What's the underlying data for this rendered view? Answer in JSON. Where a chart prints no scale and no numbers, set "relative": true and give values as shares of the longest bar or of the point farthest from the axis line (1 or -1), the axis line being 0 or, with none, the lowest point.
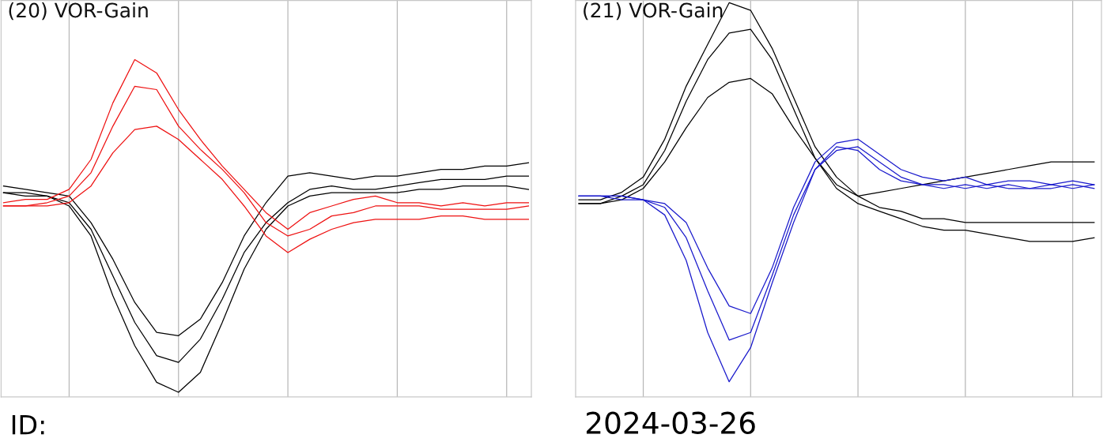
{
  "chart_data": [
    {
      "type": "line",
      "title": "(20) VOR-Gain",
      "relative": true,
      "grid": "x",
      "legend": false,
      "marker": "none",
      "line_style": "solid",
      "tick_labels": false,
      "categories": [
        null,
        null,
        null,
        null,
        null,
        null,
        null,
        null,
        null,
        null,
        null,
        null,
        null,
        null,
        null,
        null,
        null,
        null,
        null,
        null,
        null,
        null,
        null,
        null,
        null
      ],
      "annotations": [
        "ID:"
      ],
      "series": [
        {
          "color": "#000000",
          "values": [
            0.6,
            0.6,
            0.59,
            0.57,
            0.49,
            0.35,
            0.21,
            0.11,
            0.09,
            0.16,
            0.28,
            0.42,
            0.51,
            0.57,
            0.61,
            0.62,
            0.61,
            0.61,
            0.62,
            0.63,
            0.64,
            0.64,
            0.64,
            0.65,
            0.65
          ]
        },
        {
          "color": "#000000",
          "values": [
            0.6,
            0.59,
            0.59,
            0.56,
            0.47,
            0.29,
            0.14,
            0.03,
            0.0,
            0.06,
            0.21,
            0.37,
            0.49,
            0.56,
            0.59,
            0.6,
            0.6,
            0.6,
            0.6,
            0.61,
            0.61,
            0.62,
            0.62,
            0.62,
            0.61
          ]
        },
        {
          "color": "#000000",
          "values": [
            0.62,
            0.61,
            0.6,
            0.59,
            0.51,
            0.4,
            0.27,
            0.18,
            0.17,
            0.22,
            0.33,
            0.47,
            0.57,
            0.65,
            0.66,
            0.65,
            0.64,
            0.65,
            0.65,
            0.66,
            0.67,
            0.67,
            0.68,
            0.68,
            0.69
          ]
        },
        {
          "color": "#ee1111",
          "values": [
            0.57,
            0.58,
            0.58,
            0.61,
            0.7,
            0.87,
            1.0,
            0.96,
            0.85,
            0.76,
            0.68,
            0.61,
            0.54,
            0.49,
            0.54,
            0.56,
            0.58,
            0.59,
            0.57,
            0.57,
            0.56,
            0.57,
            0.56,
            0.57,
            0.57
          ]
        },
        {
          "color": "#ee1111",
          "values": [
            0.56,
            0.56,
            0.57,
            0.59,
            0.66,
            0.8,
            0.92,
            0.91,
            0.8,
            0.73,
            0.67,
            0.6,
            0.51,
            0.47,
            0.49,
            0.53,
            0.54,
            0.56,
            0.56,
            0.56,
            0.55,
            0.55,
            0.55,
            0.55,
            0.56
          ]
        },
        {
          "color": "#ee1111",
          "values": [
            0.56,
            0.56,
            0.56,
            0.57,
            0.62,
            0.72,
            0.79,
            0.8,
            0.76,
            0.7,
            0.64,
            0.56,
            0.47,
            0.42,
            0.46,
            0.49,
            0.51,
            0.52,
            0.52,
            0.52,
            0.53,
            0.53,
            0.52,
            0.52,
            0.52
          ]
        }
      ]
    },
    {
      "type": "line",
      "title": "(21) VOR-Gain",
      "relative": true,
      "grid": "x",
      "legend": false,
      "marker": "none",
      "line_style": "solid",
      "tick_labels": false,
      "categories": [
        null,
        null,
        null,
        null,
        null,
        null,
        null,
        null,
        null,
        null,
        null,
        null,
        null,
        null,
        null,
        null,
        null,
        null,
        null,
        null,
        null,
        null,
        null,
        null,
        null
      ],
      "annotations": [
        "2024-03-26"
      ],
      "series": [
        {
          "color": "#000000",
          "values": [
            0.48,
            0.48,
            0.5,
            0.54,
            0.64,
            0.78,
            0.89,
            1.0,
            0.98,
            0.88,
            0.75,
            0.62,
            0.54,
            0.49,
            0.46,
            0.45,
            0.43,
            0.43,
            0.42,
            0.42,
            0.42,
            0.42,
            0.42,
            0.42,
            0.42
          ]
        },
        {
          "color": "#000000",
          "values": [
            0.47,
            0.47,
            0.49,
            0.52,
            0.61,
            0.74,
            0.85,
            0.92,
            0.93,
            0.85,
            0.72,
            0.59,
            0.52,
            0.49,
            0.5,
            0.51,
            0.52,
            0.53,
            0.54,
            0.55,
            0.56,
            0.57,
            0.58,
            0.58,
            0.58
          ]
        },
        {
          "color": "#000000",
          "values": [
            0.47,
            0.47,
            0.48,
            0.51,
            0.58,
            0.67,
            0.75,
            0.79,
            0.8,
            0.76,
            0.67,
            0.59,
            0.51,
            0.47,
            0.45,
            0.43,
            0.41,
            0.4,
            0.4,
            0.39,
            0.38,
            0.37,
            0.37,
            0.37,
            0.38
          ]
        },
        {
          "color": "#1a1acc",
          "values": [
            0.49,
            0.49,
            0.48,
            0.48,
            0.44,
            0.32,
            0.13,
            0.0,
            0.09,
            0.26,
            0.42,
            0.56,
            0.62,
            0.61,
            0.56,
            0.53,
            0.52,
            0.51,
            0.52,
            0.51,
            0.52,
            0.51,
            0.52,
            0.51,
            0.52
          ]
        },
        {
          "color": "#1a1acc",
          "values": [
            0.49,
            0.49,
            0.49,
            0.48,
            0.46,
            0.38,
            0.24,
            0.11,
            0.13,
            0.28,
            0.44,
            0.56,
            0.61,
            0.62,
            0.58,
            0.54,
            0.52,
            0.52,
            0.51,
            0.52,
            0.51,
            0.51,
            0.51,
            0.52,
            0.51
          ]
        },
        {
          "color": "#1a1acc",
          "values": [
            0.49,
            0.49,
            0.49,
            0.48,
            0.47,
            0.42,
            0.3,
            0.2,
            0.18,
            0.3,
            0.46,
            0.58,
            0.63,
            0.64,
            0.6,
            0.56,
            0.54,
            0.53,
            0.54,
            0.52,
            0.53,
            0.53,
            0.52,
            0.53,
            0.52
          ]
        }
      ]
    }
  ]
}
